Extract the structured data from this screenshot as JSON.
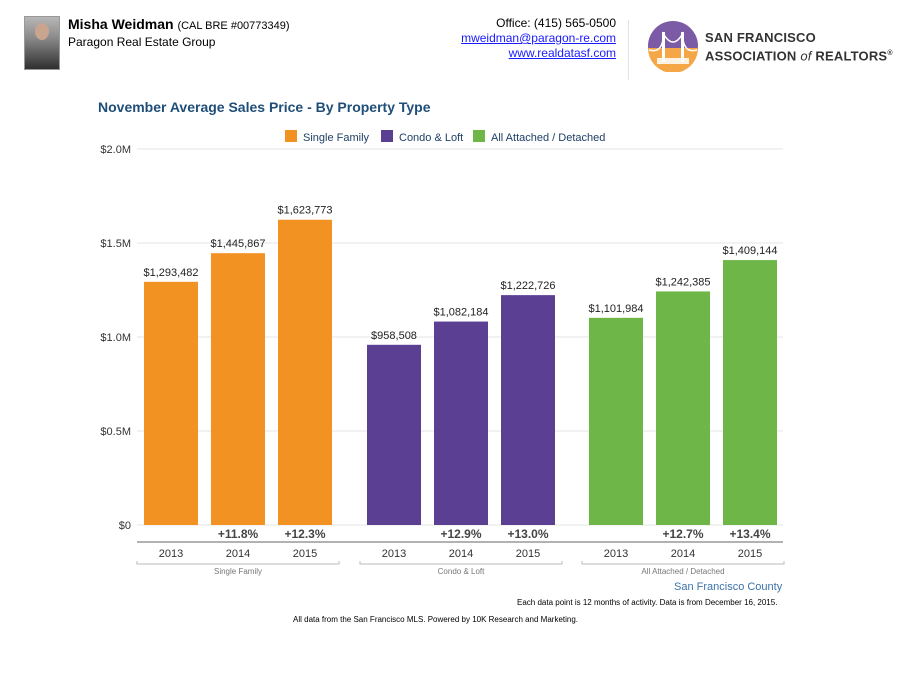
{
  "header": {
    "agent_name": "Misha Weidman",
    "agent_license": "(CAL BRE #00773349)",
    "company": "Paragon Real Estate Group",
    "office": "Office: (415) 565-0500",
    "email": "mweidman@paragon-re.com",
    "website": "www.realdatasf.com",
    "assoc_line1": "SAN FRANCISCO",
    "assoc_line2a": "ASSOCIATION",
    "assoc_line2b": "of",
    "assoc_line2c": "REALTORS",
    "assoc_reg": "®"
  },
  "footer": {
    "county": "San Francisco County",
    "note1": "Each data point is 12 months of activity. Data is from December 16, 2015.",
    "note2": "All data from the San Francisco MLS. Powered by 10K Research and Marketing."
  },
  "colors": {
    "single_family": "#f29222",
    "condo_loft": "#5b3f93",
    "attached_detached": "#6db647",
    "axis_text": "#333333",
    "change_text": "#444444"
  },
  "chart_data": {
    "type": "bar",
    "title": "November Average Sales Price - By Property Type",
    "ylim": [
      0,
      2000000
    ],
    "yticks": [
      {
        "value": 0,
        "label": "$0"
      },
      {
        "value": 500000,
        "label": "$0.5M"
      },
      {
        "value": 1000000,
        "label": "$1.0M"
      },
      {
        "value": 1500000,
        "label": "$1.5M"
      },
      {
        "value": 2000000,
        "label": "$2.0M"
      }
    ],
    "grid": true,
    "legend_position": "top",
    "series": [
      {
        "name": "Single Family",
        "color": "#f29222",
        "categories": [
          "2013",
          "2014",
          "2015"
        ],
        "values": [
          1293482,
          1445867,
          1623773
        ],
        "labels": [
          "$1,293,482",
          "$1,445,867",
          "$1,623,773"
        ],
        "changes": [
          "",
          "+11.8%",
          "+12.3%"
        ]
      },
      {
        "name": "Condo & Loft",
        "color": "#5b3f93",
        "categories": [
          "2013",
          "2014",
          "2015"
        ],
        "values": [
          958508,
          1082184,
          1222726
        ],
        "labels": [
          "$958,508",
          "$1,082,184",
          "$1,222,726"
        ],
        "changes": [
          "",
          "+12.9%",
          "+13.0%"
        ]
      },
      {
        "name": "All Attached / Detached",
        "color": "#6db647",
        "categories": [
          "2013",
          "2014",
          "2015"
        ],
        "values": [
          1101984,
          1242385,
          1409144
        ],
        "labels": [
          "$1,101,984",
          "$1,242,385",
          "$1,409,144"
        ],
        "changes": [
          "",
          "+12.7%",
          "+13.4%"
        ]
      }
    ]
  }
}
